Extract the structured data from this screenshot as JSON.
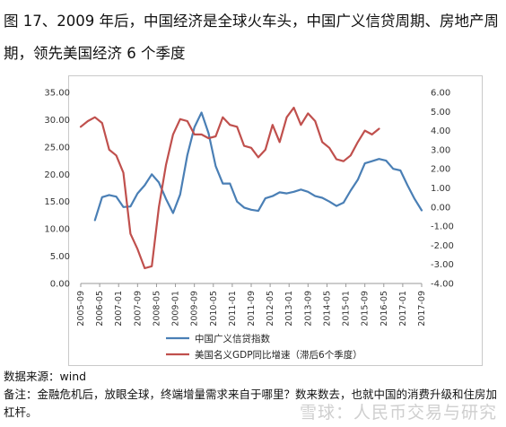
{
  "title": "图 17、2009 年后，中国经济是全球火车头，中国广义信贷周期、房地产周期，领先美国经济 6 个季度",
  "footer": {
    "source": "数据来源：wind",
    "note": "备注：金融危机后，放眼全球，终端增量需求来自于哪里？数来数去，也就中国的消费升级和住房加杠杆。"
  },
  "watermark": "雪球：人民币交易与研究",
  "chart_data": {
    "type": "line",
    "x_tick_labels": [
      "2005-09",
      "2006-05",
      "2007-01",
      "2007-09",
      "2008-05",
      "2009-01",
      "2009-09",
      "2010-05",
      "2011-01",
      "2011-09",
      "2012-05",
      "2013-01",
      "2013-09",
      "2014-05",
      "2015-01",
      "2015-09",
      "2016-05",
      "2017-01",
      "2017-09"
    ],
    "y_left": {
      "ticks": [
        "0.00",
        "5.00",
        "10.00",
        "15.00",
        "20.00",
        "25.00",
        "30.00",
        "35.00"
      ],
      "ylim": [
        0,
        35
      ]
    },
    "y_right": {
      "ticks": [
        "-4.00",
        "-3.00",
        "-2.00",
        "-1.00",
        "0.00",
        "1.00",
        "2.00",
        "3.00",
        "4.00",
        "5.00",
        "6.00"
      ],
      "ylim": [
        -4,
        6
      ]
    },
    "series": [
      {
        "name": "中国广义信贷指数",
        "axis": "left",
        "color": "#4a7fb5",
        "x": [
          "2006-03",
          "2006-06",
          "2006-09",
          "2006-12",
          "2007-03",
          "2007-06",
          "2007-09",
          "2007-12",
          "2008-03",
          "2008-06",
          "2008-09",
          "2008-12",
          "2009-03",
          "2009-06",
          "2009-09",
          "2009-12",
          "2010-03",
          "2010-06",
          "2010-09",
          "2010-12",
          "2011-03",
          "2011-06",
          "2011-09",
          "2011-12",
          "2012-03",
          "2012-06",
          "2012-09",
          "2012-12",
          "2013-03",
          "2013-06",
          "2013-09",
          "2013-12",
          "2014-03",
          "2014-06",
          "2014-09",
          "2014-12",
          "2015-03",
          "2015-06",
          "2015-09",
          "2015-12",
          "2016-03",
          "2016-06",
          "2016-09",
          "2016-12",
          "2017-03",
          "2017-06",
          "2017-09"
        ],
        "values": [
          11.6,
          15.8,
          16.2,
          15.9,
          14.0,
          14.1,
          16.5,
          18.0,
          20.0,
          18.5,
          15.5,
          12.9,
          16.3,
          23.5,
          28.6,
          31.3,
          27.5,
          21.5,
          18.3,
          18.3,
          15.0,
          13.9,
          13.5,
          13.3,
          15.6,
          16.0,
          16.7,
          16.5,
          16.8,
          17.2,
          16.8,
          16.0,
          15.7,
          15.0,
          14.2,
          14.8,
          17.0,
          19.0,
          22.0,
          22.4,
          22.8,
          22.5,
          21.0,
          20.7,
          18.0,
          15.5,
          13.4
        ]
      },
      {
        "name": "美国名义GDP同比增速（滞后6个季度）",
        "axis": "right",
        "color": "#c0504d",
        "x": [
          "2005-09",
          "2005-12",
          "2006-03",
          "2006-06",
          "2006-09",
          "2006-12",
          "2007-03",
          "2007-06",
          "2007-09",
          "2007-12",
          "2008-03",
          "2008-06",
          "2008-09",
          "2008-12",
          "2009-03",
          "2009-06",
          "2009-09",
          "2009-12",
          "2010-03",
          "2010-06",
          "2010-09",
          "2010-12",
          "2011-03",
          "2011-06",
          "2011-09",
          "2011-12",
          "2012-03",
          "2012-06",
          "2012-09",
          "2012-12",
          "2013-03",
          "2013-06",
          "2013-09",
          "2013-12",
          "2014-03",
          "2014-06",
          "2014-09",
          "2014-12",
          "2015-03",
          "2015-06",
          "2015-09",
          "2015-12",
          "2016-03"
        ],
        "values": [
          4.2,
          4.5,
          4.7,
          4.4,
          3.0,
          2.7,
          1.8,
          -1.4,
          -2.2,
          -3.2,
          -3.1,
          0.0,
          2.2,
          3.8,
          4.6,
          4.5,
          3.8,
          3.8,
          3.6,
          3.7,
          4.7,
          4.3,
          4.2,
          3.2,
          3.1,
          2.6,
          3.0,
          4.3,
          3.4,
          4.7,
          5.2,
          4.3,
          4.9,
          4.5,
          3.4,
          3.1,
          2.5,
          2.4,
          2.7,
          3.4,
          4.0,
          3.8,
          4.1
        ]
      }
    ],
    "legend_position": "bottom",
    "grid": false
  }
}
